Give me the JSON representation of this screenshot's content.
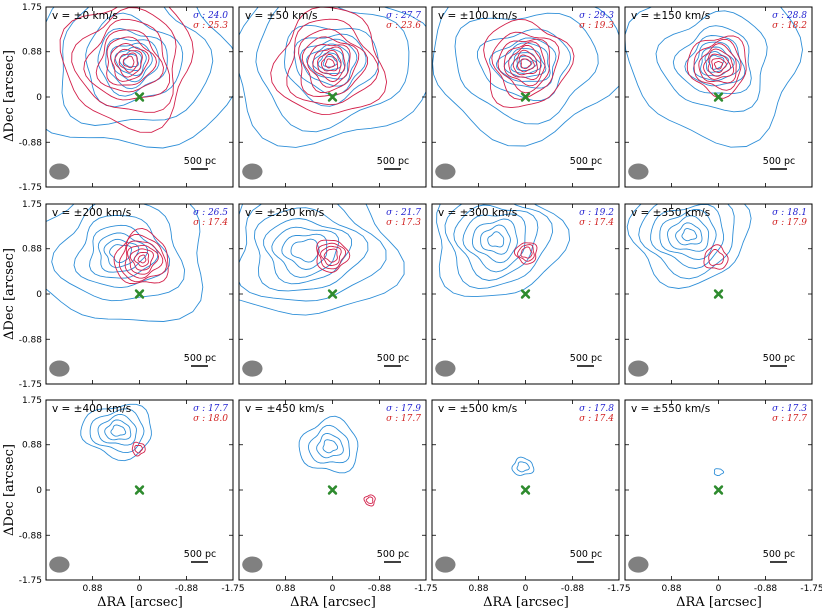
{
  "colors": {
    "blue": "#2f8fd8",
    "red": "#d3204a",
    "marker": "#2e8b2e",
    "beam": "#808080",
    "sigma_blue": "#1f1fd0",
    "sigma_red": "#d01f1f"
  },
  "scale_bar_label": "500 pc",
  "chart_data": {
    "type": "contour",
    "xlabel": "ΔRA [arcsec]",
    "ylabel": "ΔDec [arcsec]",
    "xlim": [
      1.75,
      -1.75
    ],
    "ylim": [
      -1.75,
      1.75
    ],
    "xticks": [
      0.88,
      0,
      -0.88,
      -1.75
    ],
    "xtick_labels": [
      "0.88",
      "0",
      "-0.88",
      "-1.75"
    ],
    "yticks": [
      1.75,
      0.88,
      0,
      -0.88,
      -1.75
    ],
    "ytick_labels": [
      "1.75",
      "0.88",
      "0",
      "-0.88",
      "-1.75"
    ],
    "marker": {
      "x": 0,
      "y": 0,
      "symbol": "x"
    },
    "beam": {
      "x": 1.5,
      "y": -1.45,
      "major": 0.38,
      "minor": 0.3
    },
    "panels": [
      {
        "velocity": "v = ±0 km/s",
        "sigma_blue": "σ : 24.0",
        "sigma_red": "σ : 25.3",
        "blue": [
          {
            "cx": 0.15,
            "cy": 0.7,
            "levels": [
              1.9,
              1.4,
              0.9,
              0.65,
              0.5,
              0.38,
              0.28,
              0.2,
              0.13
            ]
          }
        ],
        "red": [
          {
            "cx": 0.2,
            "cy": 0.68,
            "levels": [
              1.2,
              0.95,
              0.75,
              0.58,
              0.45,
              0.34,
              0.25,
              0.17,
              0.1
            ]
          }
        ]
      },
      {
        "velocity": "v = ±50 km/s",
        "sigma_blue": "σ : 27.7",
        "sigma_red": "σ : 23.6",
        "blue": [
          {
            "cx": 0.05,
            "cy": 0.68,
            "levels": [
              1.7,
              1.3,
              0.8,
              0.6,
              0.46,
              0.35,
              0.26,
              0.18,
              0.11
            ]
          }
        ],
        "red": [
          {
            "cx": 0.05,
            "cy": 0.65,
            "levels": [
              1.0,
              0.8,
              0.62,
              0.5,
              0.39,
              0.3,
              0.22,
              0.15,
              0.08
            ]
          }
        ]
      },
      {
        "velocity": "v = ±100 km/s",
        "sigma_blue": "σ : 29.3",
        "sigma_red": "σ : 19.3",
        "blue": [
          {
            "cx": 0.0,
            "cy": 0.65,
            "levels": [
              1.5,
              1.1,
              0.7,
              0.5,
              0.4,
              0.3,
              0.22,
              0.15,
              0.09
            ]
          }
        ],
        "red": [
          {
            "cx": 0.0,
            "cy": 0.65,
            "levels": [
              0.8,
              0.6,
              0.48,
              0.38,
              0.3,
              0.22,
              0.15,
              0.09
            ]
          }
        ]
      },
      {
        "velocity": "v = ±150 km/s",
        "sigma_blue": "σ : 28.8",
        "sigma_red": "σ : 18.2",
        "blue": [
          {
            "cx": 0.05,
            "cy": 0.68,
            "levels": [
              1.6,
              1.0,
              0.7,
              0.52,
              0.4,
              0.3,
              0.21,
              0.14
            ]
          }
        ],
        "red": [
          {
            "cx": 0.0,
            "cy": 0.62,
            "levels": [
              0.55,
              0.44,
              0.35,
              0.27,
              0.2,
              0.13,
              0.07
            ]
          }
        ]
      },
      {
        "velocity": "v = ±200 km/s",
        "sigma_blue": "σ : 26.5",
        "sigma_red": "σ : 17.4",
        "blue": [
          {
            "cx": 0.35,
            "cy": 0.8,
            "levels": [
              1.5,
              1.05,
              0.75,
              0.55,
              0.4,
              0.28,
              0.18
            ]
          }
        ],
        "red": [
          {
            "cx": -0.05,
            "cy": 0.68,
            "levels": [
              0.5,
              0.42,
              0.34,
              0.27,
              0.2,
              0.13,
              0.07
            ]
          }
        ]
      },
      {
        "velocity": "v = ±250 km/s",
        "sigma_blue": "σ : 21.7",
        "sigma_red": "σ : 17.3",
        "blue": [
          {
            "cx": 0.5,
            "cy": 0.85,
            "levels": [
              1.4,
              1.1,
              0.85,
              0.65,
              0.5,
              0.35,
              0.22
            ]
          }
        ],
        "red": [
          {
            "cx": 0.02,
            "cy": 0.75,
            "levels": [
              0.3,
              0.24,
              0.18,
              0.12
            ]
          }
        ]
      },
      {
        "velocity": "v = ±300 km/s",
        "sigma_blue": "σ : 19.2",
        "sigma_red": "σ : 17.4",
        "blue": [
          {
            "cx": 0.55,
            "cy": 1.05,
            "levels": [
              1.2,
              0.95,
              0.75,
              0.58,
              0.42,
              0.28,
              0.15
            ]
          }
        ],
        "red": [
          {
            "cx": -0.02,
            "cy": 0.8,
            "levels": [
              0.2,
              0.15,
              0.1
            ]
          }
        ]
      },
      {
        "velocity": "v = ±350 km/s",
        "sigma_blue": "σ : 18.1",
        "sigma_red": "σ : 17.9",
        "blue": [
          {
            "cx": 0.55,
            "cy": 1.15,
            "levels": [
              1.0,
              0.8,
              0.62,
              0.48,
              0.35,
              0.22,
              0.12
            ]
          }
        ],
        "red": [
          {
            "cx": 0.05,
            "cy": 0.7,
            "levels": [
              0.22,
              0.14
            ]
          }
        ]
      },
      {
        "velocity": "v = ±400 km/s",
        "sigma_blue": "σ : 17.7",
        "sigma_red": "σ : 18.0",
        "blue": [
          {
            "cx": 0.4,
            "cy": 1.15,
            "levels": [
              0.55,
              0.42,
              0.3,
              0.2,
              0.11
            ]
          }
        ],
        "red": [
          {
            "cx": 0.02,
            "cy": 0.8,
            "levels": [
              0.12,
              0.07
            ]
          }
        ]
      },
      {
        "velocity": "v = ±450 km/s",
        "sigma_blue": "σ : 17.9",
        "sigma_red": "σ : 17.7",
        "blue": [
          {
            "cx": 0.05,
            "cy": 0.85,
            "levels": [
              0.55,
              0.38,
              0.24,
              0.13
            ]
          }
        ],
        "red": [
          {
            "cx": -0.7,
            "cy": -0.2,
            "levels": [
              0.1,
              0.06
            ]
          }
        ]
      },
      {
        "velocity": "v = ±500 km/s",
        "sigma_blue": "σ : 17.8",
        "sigma_red": "σ : 17.4",
        "blue": [
          {
            "cx": 0.05,
            "cy": 0.45,
            "levels": [
              0.18,
              0.1
            ]
          }
        ],
        "red": []
      },
      {
        "velocity": "v = ±550 km/s",
        "sigma_blue": "σ : 17.3",
        "sigma_red": "σ : 17.7",
        "blue": [
          {
            "cx": 0.0,
            "cy": 0.35,
            "levels": [
              0.07
            ]
          }
        ],
        "red": []
      }
    ]
  }
}
